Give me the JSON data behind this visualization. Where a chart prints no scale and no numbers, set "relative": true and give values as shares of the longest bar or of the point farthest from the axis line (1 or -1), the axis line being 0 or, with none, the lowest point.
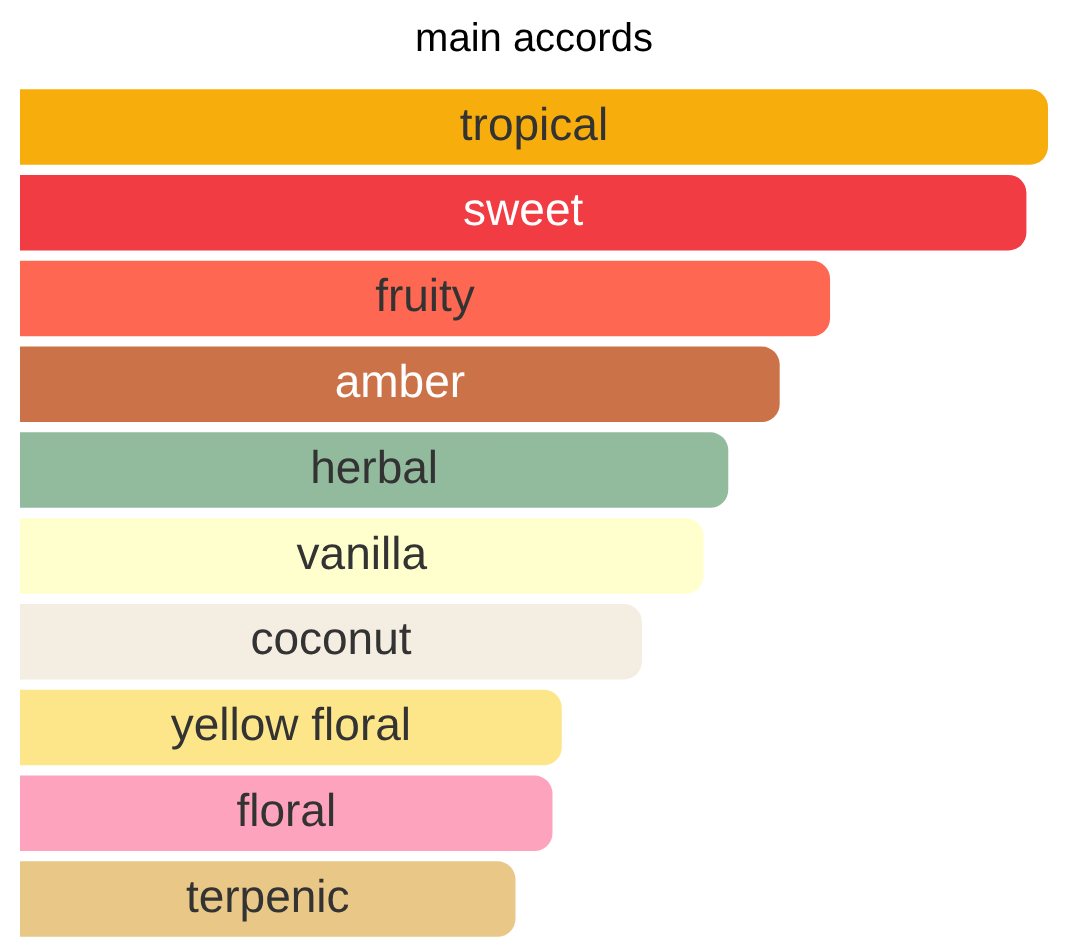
{
  "chart_data": {
    "type": "bar",
    "orientation": "horizontal",
    "relative": true,
    "title": "main accords",
    "categories": [
      "tropical",
      "sweet",
      "fruity",
      "amber",
      "herbal",
      "vanilla",
      "coconut",
      "yellow floral",
      "floral",
      "terpenic"
    ],
    "values": [
      1,
      0.979,
      0.788,
      0.739,
      0.689,
      0.665,
      0.605,
      0.527,
      0.518,
      0.482
    ],
    "colors": [
      "#f7ae0d",
      "#f03c42",
      "#fe6752",
      "#cc7249",
      "#92bb9e",
      "#ffffce",
      "#f4ede1",
      "#fde68a",
      "#fea3bd",
      "#e9c786"
    ],
    "legend": false
  }
}
